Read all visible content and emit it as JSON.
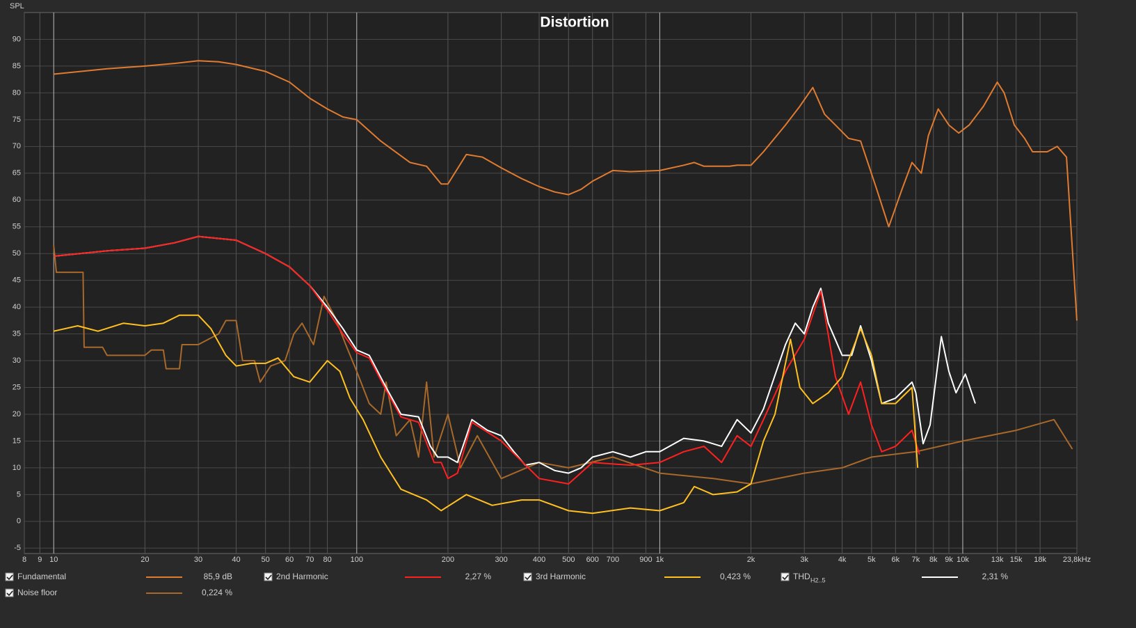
{
  "chart_data": {
    "type": "line",
    "title": "Distortion",
    "y_label": "SPL",
    "log_x": true,
    "grid": true,
    "xlim": [
      8,
      23800
    ],
    "ylim": [
      -6,
      95
    ],
    "yticks": [
      -5,
      0,
      5,
      10,
      15,
      20,
      25,
      30,
      35,
      40,
      45,
      50,
      55,
      60,
      65,
      70,
      75,
      80,
      85,
      90
    ],
    "xticks": [
      8,
      9,
      10,
      20,
      30,
      40,
      50,
      60,
      70,
      80,
      100,
      200,
      300,
      400,
      500,
      600,
      700,
      900,
      {
        "value": 1000,
        "label": "1k"
      },
      {
        "value": 2000,
        "label": "2k"
      },
      {
        "value": 3000,
        "label": "3k"
      },
      {
        "value": 4000,
        "label": "4k"
      },
      {
        "value": 5000,
        "label": "5k"
      },
      {
        "value": 6000,
        "label": "6k"
      },
      {
        "value": 7000,
        "label": "7k"
      },
      {
        "value": 8000,
        "label": "8k"
      },
      {
        "value": 9000,
        "label": "9k"
      },
      {
        "value": 10000,
        "label": "10k"
      },
      {
        "value": 13000,
        "label": "13k"
      },
      {
        "value": 15000,
        "label": "15k"
      },
      {
        "value": 18000,
        "label": "18k"
      },
      {
        "value": 23800,
        "label": "23,8kHz"
      }
    ],
    "series": [
      {
        "name": "Noise floor",
        "readout": "0,224 %",
        "color": "#a8692a",
        "x": [
          10,
          10.2,
          12.5,
          12.6,
          14.5,
          15,
          20,
          21,
          23,
          23.5,
          26,
          26.5,
          30,
          35,
          37,
          40,
          42,
          46,
          48,
          52,
          58,
          62,
          66,
          72,
          78,
          85,
          92,
          100,
          110,
          120,
          125,
          135,
          150,
          160,
          170,
          180,
          200,
          220,
          250,
          300,
          400,
          500,
          700,
          1000,
          1500,
          2000,
          3000,
          4000,
          5000,
          7000,
          10000,
          15000,
          20000,
          23000
        ],
        "values": [
          51.5,
          46.5,
          46.5,
          32.5,
          32.5,
          31,
          31,
          32,
          32,
          28.5,
          28.5,
          33,
          33,
          35,
          37.5,
          37.5,
          30,
          30,
          26,
          29,
          30,
          35,
          37,
          33,
          42,
          38,
          33,
          28,
          22,
          20,
          26,
          16,
          19,
          12,
          26,
          12,
          20,
          10,
          16,
          8,
          11,
          10,
          12,
          9,
          8,
          7,
          9,
          10,
          12,
          13,
          15,
          17,
          19,
          13.5
        ]
      },
      {
        "name": "Fundamental",
        "readout": "85,9 dB",
        "color": "#e07b30",
        "x": [
          10,
          15,
          20,
          25,
          30,
          35,
          40,
          50,
          60,
          70,
          80,
          90,
          100,
          120,
          150,
          170,
          190,
          200,
          230,
          260,
          300,
          350,
          400,
          450,
          500,
          550,
          600,
          700,
          800,
          1000,
          1200,
          1300,
          1400,
          1700,
          1800,
          2000,
          2200,
          2600,
          2900,
          3200,
          3500,
          3800,
          4200,
          4600,
          5200,
          5700,
          6300,
          6800,
          7300,
          7700,
          8300,
          9000,
          9700,
          10500,
          11700,
          13000,
          13700,
          14800,
          16000,
          17000,
          19000,
          20500,
          22000,
          23800
        ],
        "values": [
          83.5,
          84.5,
          85,
          85.5,
          86,
          85.8,
          85.3,
          84,
          82,
          79,
          77,
          75.5,
          75,
          71,
          67,
          66.3,
          63,
          63,
          68.5,
          68,
          66,
          64,
          62.5,
          61.5,
          61,
          62,
          63.5,
          65.5,
          65.3,
          65.5,
          66.5,
          67,
          66.3,
          66.3,
          66.5,
          66.5,
          69,
          74,
          77.5,
          81,
          76,
          74,
          71.5,
          71,
          62,
          55,
          62,
          67,
          65,
          72,
          77,
          74,
          72.5,
          74,
          77.5,
          82,
          80,
          74,
          71.5,
          69,
          69,
          70,
          68,
          37.5
        ]
      },
      {
        "name": "THD",
        "name_sub": "H2..5",
        "readout": "2,31 %",
        "color": "#ffffff",
        "x": [
          10,
          15,
          20,
          25,
          30,
          40,
          50,
          60,
          70,
          80,
          90,
          100,
          110,
          125,
          140,
          160,
          175,
          185,
          200,
          215,
          240,
          270,
          300,
          330,
          360,
          400,
          450,
          500,
          550,
          600,
          700,
          800,
          900,
          1000,
          1200,
          1400,
          1600,
          1800,
          2000,
          2200,
          2600,
          2800,
          3000,
          3200,
          3400,
          3600,
          4000,
          4300,
          4600,
          5000,
          5400,
          6000,
          6800,
          7000,
          7400,
          7800,
          8500,
          9000,
          9500,
          10200,
          11000
        ],
        "values": [
          49.5,
          50.5,
          51,
          52,
          53.2,
          52.5,
          50,
          47.5,
          44,
          40,
          36,
          32,
          31,
          25,
          20,
          19.5,
          14,
          12,
          12,
          11,
          19,
          17,
          16,
          13,
          10.5,
          11,
          9.5,
          9,
          10,
          12,
          13,
          12,
          13,
          13,
          15.5,
          15,
          14,
          19,
          16.5,
          21,
          33,
          37,
          35,
          40,
          43.5,
          37,
          31,
          31,
          36.5,
          30,
          22,
          23,
          26,
          24,
          14.5,
          18,
          34.5,
          28,
          24,
          27.5,
          22
        ]
      },
      {
        "name": "2nd Harmonic",
        "readout": "2,27 %",
        "color": "#ff2020",
        "x": [
          10,
          15,
          20,
          25,
          30,
          40,
          50,
          60,
          70,
          80,
          90,
          100,
          110,
          125,
          140,
          160,
          180,
          190,
          200,
          215,
          240,
          300,
          400,
          500,
          600,
          800,
          1000,
          1200,
          1400,
          1600,
          1800,
          2000,
          2200,
          2600,
          3000,
          3400,
          3800,
          4200,
          4600,
          5000,
          5400,
          6000,
          6800,
          7200
        ],
        "values": [
          49.5,
          50.5,
          51,
          52,
          53.2,
          52.5,
          50,
          47.5,
          44,
          39.5,
          35,
          31.5,
          30.5,
          24.5,
          19.5,
          18.5,
          11,
          11,
          8,
          9,
          18.5,
          15,
          8,
          7,
          11,
          10.5,
          11,
          13,
          14,
          11,
          16,
          14,
          19,
          28,
          34,
          43,
          27,
          20,
          26,
          18,
          13,
          14,
          17,
          12.5
        ]
      },
      {
        "name": "3rd Harmonic",
        "readout": "0,423 %",
        "color": "#ffc020",
        "x": [
          10,
          12,
          14,
          17,
          20,
          23,
          26,
          30,
          33,
          37,
          40,
          45,
          50,
          55,
          62,
          70,
          80,
          88,
          95,
          105,
          120,
          140,
          170,
          190,
          230,
          280,
          350,
          400,
          500,
          600,
          800,
          1000,
          1200,
          1300,
          1500,
          1800,
          2000,
          2200,
          2400,
          2700,
          2900,
          3200,
          3600,
          4000,
          4600,
          5000,
          5400,
          6000,
          6800,
          7100
        ],
        "values": [
          35.5,
          36.5,
          35.5,
          37,
          36.5,
          37,
          38.5,
          38.5,
          36,
          31,
          29,
          29.5,
          29.5,
          30.5,
          27,
          26,
          30,
          28,
          23,
          19,
          12,
          6,
          4,
          2,
          5,
          3,
          4,
          4,
          2,
          1.5,
          2.5,
          2,
          3.5,
          6.5,
          5,
          5.5,
          7,
          15,
          20,
          34,
          25,
          22,
          24,
          27,
          36,
          31,
          22,
          22,
          25,
          10
        ]
      }
    ]
  }
}
